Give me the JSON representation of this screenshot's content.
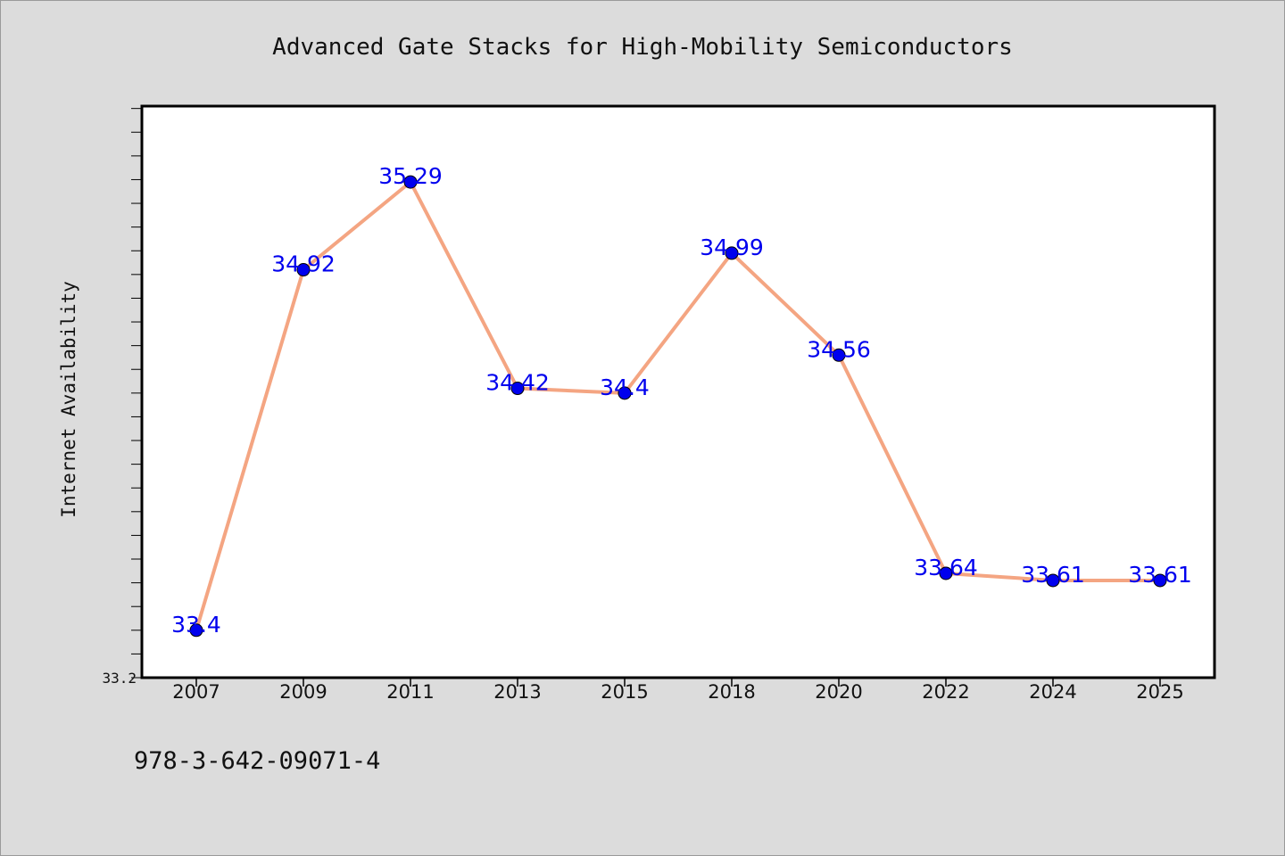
{
  "chart_data": {
    "type": "line",
    "title": "Advanced Gate Stacks for High-Mobility Semiconductors",
    "xlabel": "",
    "ylabel": "Internet Availability",
    "categories": [
      "2007",
      "2009",
      "2011",
      "2013",
      "2015",
      "2018",
      "2020",
      "2022",
      "2024",
      "2025"
    ],
    "series": [
      {
        "values": [
          33.4,
          34.92,
          35.29,
          34.42,
          34.4,
          34.99,
          34.56,
          33.64,
          33.61,
          33.61
        ],
        "data_labels": [
          "33.4",
          "34.92",
          "35.29",
          "34.42",
          "34.4",
          "34.99",
          "34.56",
          "33.64",
          "33.61",
          "33.61"
        ],
        "line_color": "#f4a582",
        "marker_color": "#0000ee"
      }
    ],
    "ylim": [
      33.2,
      35.61
    ],
    "y_tick_labels": [
      "33.2"
    ],
    "y_minor_tick_step": 0.1,
    "grid": false,
    "legend": "none"
  },
  "footer": {
    "isbn": "978-3-642-09071-4"
  },
  "colors": {
    "background": "#dcdcdc",
    "plot_area": "#ffffff",
    "axis": "#000000",
    "label_color": "#0000ee"
  }
}
